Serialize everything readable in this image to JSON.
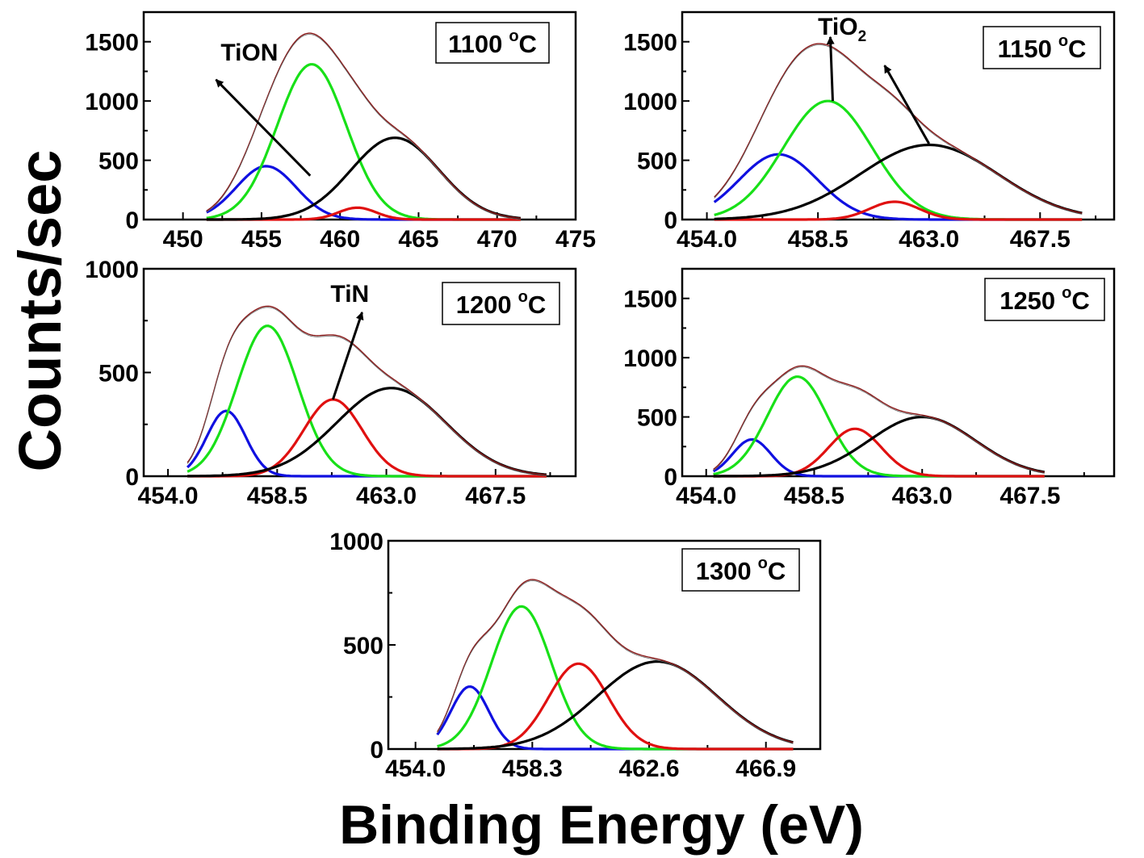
{
  "figure": {
    "ylabel": "Counts/sec",
    "xlabel": "Binding Energy (eV)"
  },
  "colors": {
    "envelope": "#8b1a1a",
    "blue": "#1010e0",
    "green": "#18e018",
    "red": "#e01010",
    "black": "#000000"
  },
  "chart_data": [
    {
      "type": "line",
      "label": "1100",
      "label_sup": "o",
      "label_unit": "C",
      "xlim": [
        447.5,
        475
      ],
      "ylim": [
        0,
        1750
      ],
      "x_ticks": [
        450,
        455,
        460,
        465,
        470,
        475
      ],
      "x_tick_labels": [
        "450",
        "455",
        "460",
        "465",
        "470",
        "475"
      ],
      "y_ticks": [
        0,
        500,
        1000,
        1500
      ],
      "y_tick_labels": [
        "0",
        "500",
        "1000",
        "1500"
      ],
      "x_range": [
        451.5,
        471.5
      ],
      "series": [
        {
          "color": "blue",
          "center": 455.3,
          "height": 450,
          "sigma": 1.9
        },
        {
          "color": "green",
          "center": 458.2,
          "height": 1310,
          "sigma": 2.2
        },
        {
          "color": "red",
          "center": 461.1,
          "height": 100,
          "sigma": 1.2
        },
        {
          "color": "black",
          "center": 463.5,
          "height": 690,
          "sigma": 2.8
        }
      ],
      "annotations": [
        {
          "text": "TiON",
          "sub": "",
          "text_at": [
            452.4,
            1340
          ],
          "arrow_from": [
            458.1,
            370
          ],
          "arrow_to": [
            452.1,
            1180
          ]
        }
      ]
    },
    {
      "type": "line",
      "label": "1150",
      "label_sup": "o",
      "label_unit": "C",
      "xlim": [
        453,
        470.5
      ],
      "ylim": [
        0,
        1750
      ],
      "x_ticks": [
        454.0,
        458.5,
        463.0,
        467.5
      ],
      "x_tick_labels": [
        "454.0",
        "458.5",
        "463.0",
        "467.5"
      ],
      "y_ticks": [
        0,
        500,
        1000,
        1500
      ],
      "y_tick_labels": [
        "0",
        "500",
        "1000",
        "1500"
      ],
      "x_range": [
        454.3,
        469.2
      ],
      "series": [
        {
          "color": "blue",
          "center": 456.9,
          "height": 550,
          "sigma": 1.6
        },
        {
          "color": "green",
          "center": 458.9,
          "height": 1000,
          "sigma": 1.8
        },
        {
          "color": "red",
          "center": 461.6,
          "height": 150,
          "sigma": 1.0
        },
        {
          "color": "black",
          "center": 463.0,
          "height": 630,
          "sigma": 2.8
        }
      ],
      "annotations": [
        {
          "text": "TiO",
          "sub": "2",
          "text_at": [
            458.5,
            1560
          ],
          "arrow_from": [
            459.1,
            1000
          ],
          "arrow_to": [
            459.0,
            1540
          ]
        },
        {
          "text": "",
          "sub": "",
          "text_at": [
            0,
            0
          ],
          "arrow_from": [
            463.0,
            640
          ],
          "arrow_to": [
            461.2,
            1300
          ]
        }
      ]
    },
    {
      "type": "line",
      "label": "1200",
      "label_sup": "o",
      "label_unit": "C",
      "xlim": [
        453,
        470.8
      ],
      "ylim": [
        0,
        1000
      ],
      "x_ticks": [
        454.0,
        458.5,
        463.0,
        467.5
      ],
      "x_tick_labels": [
        "454.0",
        "458.5",
        "463.0",
        "467.5"
      ],
      "y_ticks": [
        0,
        500,
        1000
      ],
      "y_tick_labels": [
        "0",
        "500",
        "1000"
      ],
      "x_range": [
        454.8,
        469.6
      ],
      "series": [
        {
          "color": "blue",
          "center": 456.4,
          "height": 315,
          "sigma": 0.8
        },
        {
          "color": "green",
          "center": 458.1,
          "height": 725,
          "sigma": 1.25
        },
        {
          "color": "red",
          "center": 460.8,
          "height": 370,
          "sigma": 1.2
        },
        {
          "color": "black",
          "center": 463.2,
          "height": 425,
          "sigma": 2.25
        }
      ],
      "annotations": [
        {
          "text": "TiN",
          "sub": "",
          "text_at": [
            460.7,
            840
          ],
          "arrow_from": [
            460.8,
            370
          ],
          "arrow_to": [
            462.0,
            790
          ]
        }
      ]
    },
    {
      "type": "line",
      "label": "1250",
      "label_sup": "o",
      "label_unit": "C",
      "xlim": [
        453,
        471
      ],
      "ylim": [
        0,
        1750
      ],
      "x_ticks": [
        454.0,
        458.5,
        463.0,
        467.5
      ],
      "x_tick_labels": [
        "454.0",
        "458.5",
        "463.0",
        "467.5"
      ],
      "y_ticks": [
        0,
        500,
        1000,
        1500
      ],
      "y_tick_labels": [
        "0",
        "500",
        "1000",
        "1500"
      ],
      "x_range": [
        454.3,
        468.1
      ],
      "series": [
        {
          "color": "blue",
          "center": 455.9,
          "height": 310,
          "sigma": 0.8
        },
        {
          "color": "green",
          "center": 457.8,
          "height": 840,
          "sigma": 1.25
        },
        {
          "color": "red",
          "center": 460.2,
          "height": 400,
          "sigma": 1.1
        },
        {
          "color": "black",
          "center": 463.0,
          "height": 500,
          "sigma": 2.2
        }
      ],
      "annotations": []
    },
    {
      "type": "line",
      "label": "1300",
      "label_sup": "o",
      "label_unit": "C",
      "xlim": [
        453,
        468.9
      ],
      "ylim": [
        0,
        1000
      ],
      "x_ticks": [
        454.0,
        458.3,
        462.6,
        466.9
      ],
      "x_tick_labels": [
        "454.0",
        "458.3",
        "462.6",
        "466.9"
      ],
      "y_ticks": [
        0,
        500,
        1000
      ],
      "y_tick_labels": [
        "0",
        "500",
        "1000"
      ],
      "x_range": [
        454.8,
        467.9
      ],
      "series": [
        {
          "color": "blue",
          "center": 456.0,
          "height": 300,
          "sigma": 0.7
        },
        {
          "color": "green",
          "center": 457.9,
          "height": 685,
          "sigma": 1.1
        },
        {
          "color": "red",
          "center": 460.0,
          "height": 410,
          "sigma": 1.1
        },
        {
          "color": "black",
          "center": 462.9,
          "height": 420,
          "sigma": 2.2
        }
      ],
      "annotations": []
    }
  ]
}
